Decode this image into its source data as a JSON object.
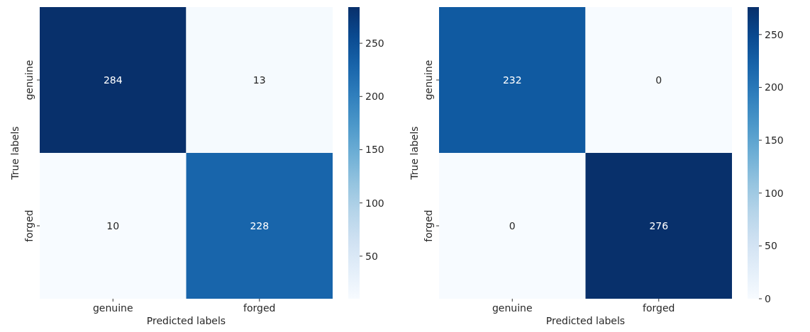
{
  "chart_data": [
    {
      "type": "heatmap",
      "categories": [
        "genuine",
        "forged"
      ],
      "y_categories": [
        "genuine",
        "forged"
      ],
      "cells": [
        [
          284,
          13
        ],
        [
          10,
          228
        ]
      ],
      "data_labels": true,
      "xlabel": "Predicted labels",
      "ylabel": "True labels",
      "clim": [
        10,
        284
      ],
      "cticks": [
        50,
        100,
        150,
        200,
        250
      ]
    },
    {
      "type": "heatmap",
      "categories": [
        "genuine",
        "forged"
      ],
      "y_categories": [
        "genuine",
        "forged"
      ],
      "cells": [
        [
          232,
          0
        ],
        [
          0,
          276
        ]
      ],
      "data_labels": true,
      "xlabel": "Predicted labels",
      "ylabel": "True labels",
      "clim": [
        0,
        276
      ],
      "cticks": [
        0,
        50,
        100,
        150,
        200,
        250
      ]
    }
  ]
}
